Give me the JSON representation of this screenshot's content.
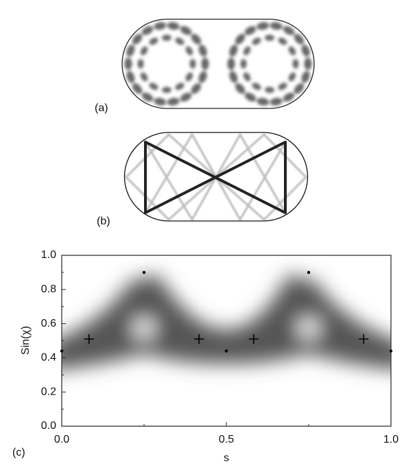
{
  "panel_labels": [
    "(a)",
    "(b)",
    "(c)"
  ],
  "chart_data": {
    "type": "scatter",
    "xlabel": "s",
    "ylabel": "Sin(χ)",
    "xlim": [
      0,
      1
    ],
    "ylim": [
      0,
      1
    ],
    "xticks": [
      {
        "value": 0,
        "label": "0.0"
      },
      0.5,
      {
        "value": 1,
        "label": "1.0"
      }
    ],
    "yticks": [
      {
        "value": 0,
        "label": "0.0"
      },
      0.2,
      0.4,
      0.6,
      0.8,
      {
        "value": 1,
        "label": "1.0"
      }
    ],
    "series": [
      {
        "marker": "dot",
        "color": "#000000",
        "x": [
          0,
          0.25,
          0.5,
          0.75,
          1
        ],
        "y": [
          0.44,
          0.9,
          0.44,
          0.9,
          0.44
        ]
      },
      {
        "marker": "plus",
        "color": "#000000",
        "x": [
          0.083,
          0.417,
          0.583,
          0.917
        ],
        "y": [
          0.51,
          0.51,
          0.51,
          0.51
        ]
      }
    ]
  }
}
